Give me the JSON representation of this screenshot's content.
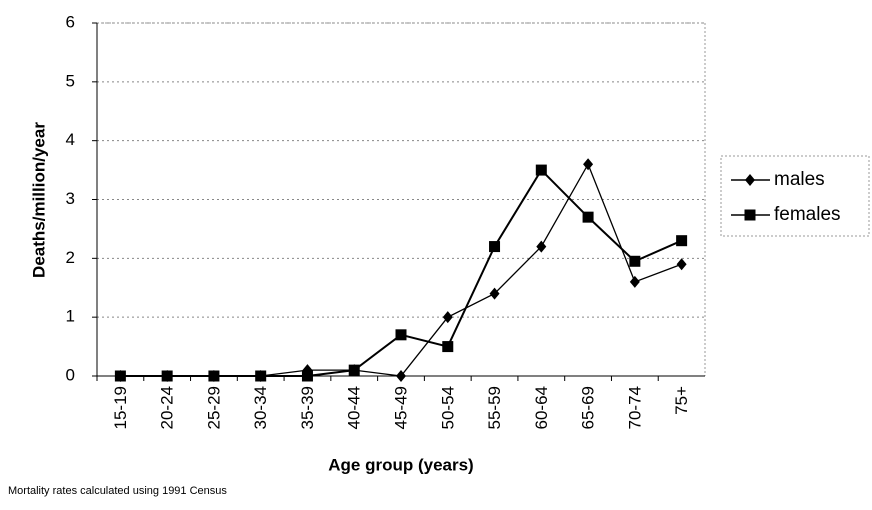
{
  "chart_data": {
    "type": "line",
    "y_label": "Deaths/million/year",
    "x_label": "Age group (years)",
    "footnote": "Mortality rates calculated using 1991 Census",
    "categories": [
      "15-19",
      "20-24",
      "25-29",
      "30-34",
      "35-39",
      "40-44",
      "45-49",
      "50-54",
      "55-59",
      "60-64",
      "65-69",
      "70-74",
      "75+"
    ],
    "series": [
      {
        "name": "males",
        "color": "#000000",
        "marker": "diamond",
        "values": [
          0,
          0,
          0,
          0,
          0.1,
          0.1,
          0,
          1,
          1.4,
          2.2,
          3.6,
          1.6,
          1.9
        ]
      },
      {
        "name": "females",
        "color": "#000000",
        "marker": "square",
        "values": [
          0,
          0,
          0,
          0,
          0,
          0.1,
          0.7,
          0.5,
          2.2,
          3.5,
          2.7,
          1.95,
          2.3
        ]
      }
    ],
    "ylim": [
      0,
      6
    ],
    "yticks": [
      0,
      1,
      2,
      3,
      4,
      5,
      6
    ],
    "grid": true,
    "legend": "right"
  }
}
